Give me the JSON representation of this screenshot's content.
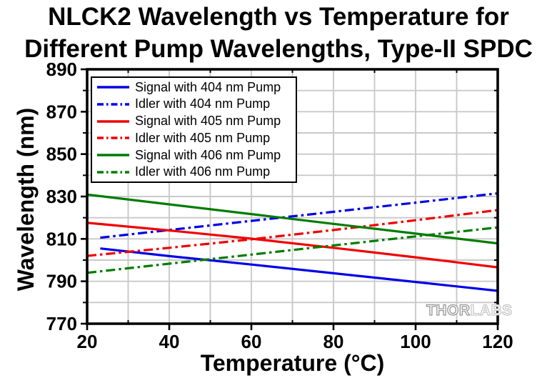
{
  "title": {
    "line1": "NLCK2 Wavelength vs Temperature for",
    "line2": "Different Pump Wavelengths, Type-II SPDC"
  },
  "watermark": {
    "brand_part1": "THOR",
    "brand_part2": "LABS"
  },
  "colors": {
    "blue_series": "#0000E8",
    "red_series": "#F00000",
    "green_series": "#007C00",
    "grid": "#C9C9C9",
    "axis": "#000000"
  },
  "chart_data": {
    "type": "line",
    "title": "NLCK2 Wavelength vs Temperature for Different Pump Wavelengths, Type-II SPDC",
    "xlabel": "Temperature (°C)",
    "ylabel": "Wavelength (nm)",
    "xlim": [
      20,
      120
    ],
    "ylim": [
      770,
      890
    ],
    "x_major_ticks": [
      20,
      40,
      60,
      80,
      100,
      120
    ],
    "y_major_ticks": [
      770,
      790,
      810,
      830,
      850,
      870,
      890
    ],
    "minor_tick_step_x": 10,
    "minor_tick_step_y": 10,
    "grid": "major and minor gridlines every 10 units, light gray",
    "legend_position": "top-left inside plot",
    "series": [
      {
        "name": "Signal with 404 nm Pump",
        "color": "#0000E8",
        "line_style": "solid",
        "points": [
          [
            23.2,
            805.5
          ],
          [
            40,
            801.9
          ],
          [
            60,
            797.9
          ],
          [
            80,
            793.8
          ],
          [
            100,
            789.7
          ],
          [
            120,
            785.5
          ]
        ]
      },
      {
        "name": "Idler with 404 nm Pump",
        "color": "#0000E8",
        "line_style": "dash-dot",
        "points": [
          [
            23.2,
            810.6
          ],
          [
            40,
            814.2
          ],
          [
            60,
            818.5
          ],
          [
            80,
            822.8
          ],
          [
            100,
            827.1
          ],
          [
            120,
            831.5
          ]
        ]
      },
      {
        "name": "Signal with 405 nm Pump",
        "color": "#F00000",
        "line_style": "solid",
        "points": [
          [
            20,
            817.6
          ],
          [
            40,
            814.0
          ],
          [
            60,
            810.1
          ],
          [
            80,
            805.8
          ],
          [
            100,
            801.3
          ],
          [
            120,
            796.6
          ]
        ]
      },
      {
        "name": "Idler with 405 nm Pump",
        "color": "#F00000",
        "line_style": "dash-dot",
        "points": [
          [
            20,
            802.0
          ],
          [
            40,
            805.8
          ],
          [
            60,
            809.8
          ],
          [
            80,
            814.2
          ],
          [
            100,
            818.8
          ],
          [
            120,
            823.6
          ]
        ]
      },
      {
        "name": "Signal with 406 nm Pump",
        "color": "#007C00",
        "line_style": "solid",
        "points": [
          [
            20,
            830.9
          ],
          [
            40,
            826.3
          ],
          [
            60,
            821.7
          ],
          [
            80,
            817.1
          ],
          [
            100,
            812.5
          ],
          [
            120,
            807.9
          ]
        ]
      },
      {
        "name": "Idler with 406 nm Pump",
        "color": "#007C00",
        "line_style": "dash-dot",
        "points": [
          [
            20,
            794.0
          ],
          [
            40,
            798.3
          ],
          [
            60,
            802.6
          ],
          [
            80,
            806.9
          ],
          [
            100,
            811.2
          ],
          [
            120,
            815.4
          ]
        ]
      }
    ]
  }
}
